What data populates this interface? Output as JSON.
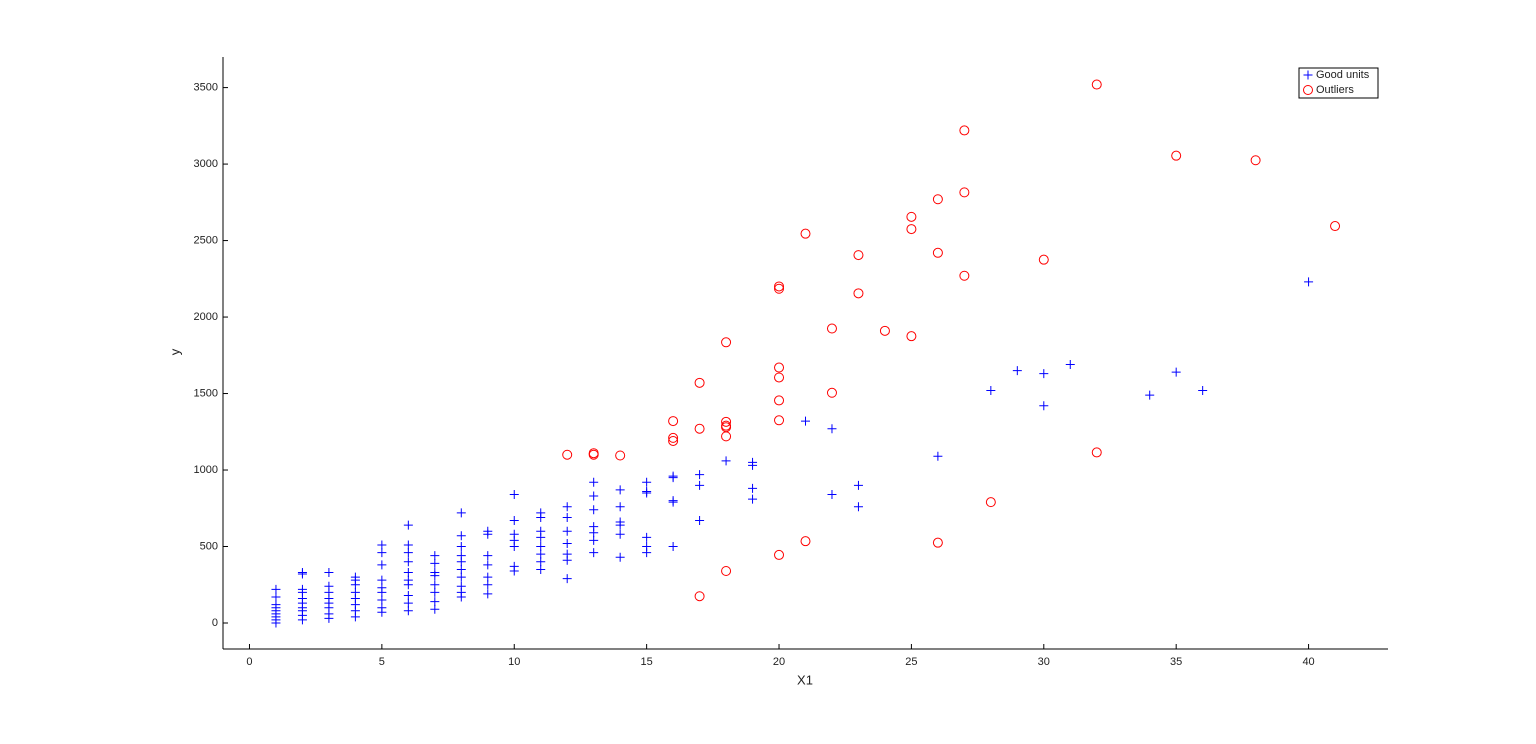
{
  "chart_data": {
    "type": "scatter",
    "x_label": "X1",
    "y_label": "y",
    "xlim": [
      -1,
      43
    ],
    "ylim": [
      -170,
      3700
    ],
    "xticks": [
      0,
      5,
      10,
      15,
      20,
      25,
      30,
      35,
      40
    ],
    "yticks": [
      0,
      500,
      1000,
      1500,
      2000,
      2500,
      3000,
      3500
    ],
    "legend_position": "upper right",
    "series": [
      {
        "name": "Good units",
        "color": "#0000ff",
        "marker": "plus",
        "x": [
          1,
          1,
          1,
          1,
          1,
          1,
          1,
          1,
          1,
          2,
          2,
          2,
          2,
          2,
          2,
          2,
          2,
          2,
          2,
          3,
          3,
          3,
          3,
          3,
          3,
          3,
          3,
          4,
          4,
          4,
          4,
          4,
          4,
          4,
          4,
          5,
          5,
          5,
          5,
          5,
          5,
          5,
          5,
          5,
          6,
          6,
          6,
          6,
          6,
          6,
          6,
          6,
          6,
          6,
          7,
          7,
          7,
          7,
          7,
          7,
          7,
          7,
          8,
          8,
          8,
          8,
          8,
          8,
          8,
          8,
          8,
          8,
          9,
          9,
          9,
          9,
          9,
          9,
          9,
          10,
          10,
          10,
          10,
          10,
          10,
          10,
          11,
          11,
          11,
          11,
          11,
          11,
          11,
          11,
          12,
          12,
          12,
          12,
          12,
          12,
          12,
          13,
          13,
          13,
          13,
          13,
          13,
          13,
          14,
          14,
          14,
          14,
          14,
          14,
          15,
          15,
          15,
          15,
          15,
          15,
          16,
          16,
          16,
          16,
          16,
          17,
          17,
          17,
          18,
          19,
          19,
          19,
          19,
          21,
          22,
          22,
          23,
          23,
          26,
          28,
          29,
          30,
          30,
          31,
          34,
          35,
          36,
          40
        ],
        "values": [
          0,
          20,
          40,
          60,
          80,
          100,
          120,
          170,
          220,
          20,
          50,
          80,
          100,
          130,
          160,
          200,
          220,
          320,
          330,
          30,
          60,
          100,
          130,
          160,
          200,
          240,
          330,
          40,
          80,
          120,
          160,
          200,
          250,
          280,
          300,
          70,
          100,
          150,
          200,
          230,
          280,
          380,
          460,
          510,
          80,
          130,
          180,
          250,
          280,
          330,
          400,
          460,
          510,
          640,
          90,
          140,
          200,
          250,
          310,
          330,
          390,
          440,
          170,
          200,
          240,
          300,
          350,
          400,
          440,
          500,
          570,
          720,
          190,
          250,
          300,
          380,
          440,
          580,
          600,
          340,
          370,
          500,
          540,
          580,
          670,
          840,
          350,
          400,
          450,
          500,
          560,
          600,
          690,
          720,
          290,
          410,
          450,
          520,
          600,
          690,
          760,
          460,
          540,
          590,
          630,
          740,
          830,
          920,
          430,
          580,
          640,
          660,
          760,
          870,
          460,
          500,
          560,
          850,
          860,
          920,
          500,
          790,
          800,
          950,
          960,
          670,
          900,
          970,
          1060,
          810,
          880,
          1030,
          1050,
          1320,
          840,
          1270,
          760,
          900,
          1090,
          1520,
          1650,
          1420,
          1630,
          1690,
          1490,
          1640,
          1520,
          2230
        ]
      },
      {
        "name": "Outliers",
        "color": "#ff0000",
        "marker": "circle",
        "x": [
          12,
          13,
          13,
          14,
          16,
          16,
          16,
          17,
          17,
          17,
          18,
          18,
          18,
          18,
          18,
          18,
          20,
          20,
          20,
          20,
          20,
          20,
          20,
          21,
          21,
          22,
          22,
          23,
          23,
          24,
          25,
          25,
          25,
          26,
          26,
          26,
          27,
          27,
          27,
          28,
          30,
          32,
          32,
          35,
          38,
          41
        ],
        "values": [
          1100,
          1110,
          1100,
          1095,
          1320,
          1210,
          1190,
          1570,
          1270,
          175,
          1835,
          1315,
          1290,
          1280,
          1220,
          340,
          2200,
          2185,
          1670,
          1605,
          1455,
          1325,
          445,
          2545,
          535,
          1925,
          1505,
          2405,
          2155,
          1910,
          2655,
          2575,
          1875,
          2770,
          2420,
          525,
          3220,
          2815,
          2270,
          790,
          2375,
          3520,
          1115,
          3055,
          3025,
          2595
        ]
      }
    ]
  }
}
